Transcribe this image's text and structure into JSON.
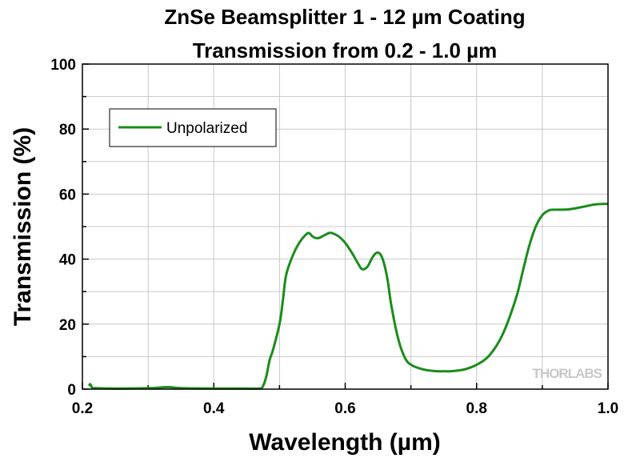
{
  "chart_data": {
    "type": "line",
    "title": "ZnSe Beamsplitter 1 - 12 µm Coating",
    "subtitle": "Transmission from 0.2 - 1.0 µm",
    "xlabel": "Wavelength (µm)",
    "ylabel": "Transmission (%)",
    "xlim": [
      0.2,
      1.0
    ],
    "ylim": [
      0,
      100
    ],
    "xticks": [
      "0.2",
      "0.4",
      "0.6",
      "0.8",
      "1.0"
    ],
    "yticks": [
      "0",
      "20",
      "40",
      "60",
      "80",
      "100"
    ],
    "grid": true,
    "legend_position": "top-left",
    "series": [
      {
        "name": "Unpolarized",
        "color": "#1a8c1a",
        "x": [
          0.21,
          0.212,
          0.215,
          0.22,
          0.25,
          0.3,
          0.33,
          0.35,
          0.4,
          0.45,
          0.47,
          0.475,
          0.48,
          0.485,
          0.49,
          0.5,
          0.505,
          0.51,
          0.52,
          0.53,
          0.54,
          0.545,
          0.55,
          0.555,
          0.56,
          0.565,
          0.57,
          0.575,
          0.58,
          0.59,
          0.6,
          0.61,
          0.62,
          0.625,
          0.63,
          0.635,
          0.64,
          0.645,
          0.65,
          0.655,
          0.66,
          0.665,
          0.67,
          0.68,
          0.69,
          0.7,
          0.72,
          0.74,
          0.75,
          0.76,
          0.78,
          0.8,
          0.82,
          0.84,
          0.86,
          0.87,
          0.88,
          0.89,
          0.9,
          0.91,
          0.92,
          0.94,
          0.96,
          0.98,
          1.0
        ],
        "y": [
          1.0,
          1.5,
          0.4,
          0.3,
          0.2,
          0.3,
          0.6,
          0.3,
          0.2,
          0.2,
          0.2,
          1.0,
          4.0,
          9.0,
          12.0,
          20.0,
          27.0,
          35.0,
          41.0,
          45.0,
          47.5,
          48.0,
          47.0,
          46.5,
          46.5,
          47.0,
          47.5,
          48.0,
          48.0,
          47.0,
          45.0,
          42.0,
          38.5,
          37.0,
          37.0,
          38.0,
          40.0,
          41.5,
          42.0,
          41.0,
          38.0,
          33.0,
          26.0,
          16.0,
          10.0,
          7.5,
          6.0,
          5.5,
          5.5,
          5.5,
          6.0,
          7.5,
          10.5,
          17.0,
          28.0,
          36.0,
          44.0,
          50.0,
          53.5,
          55.0,
          55.2,
          55.3,
          56.0,
          56.8,
          57.0
        ]
      }
    ]
  },
  "watermark": {
    "text": "THORLABS"
  }
}
